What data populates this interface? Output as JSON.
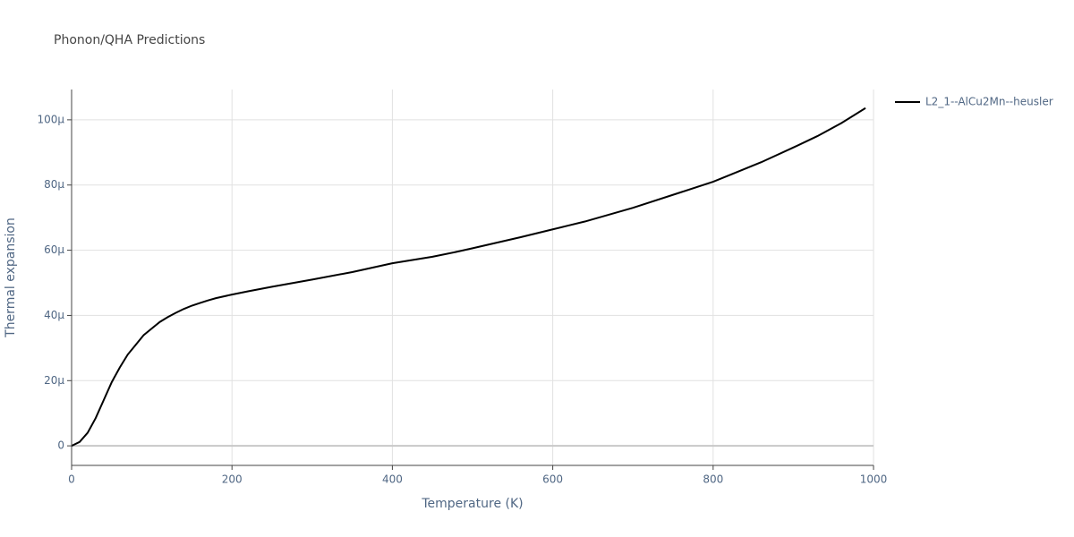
{
  "chart_data": {
    "type": "line",
    "title": "Phonon/QHA Predictions",
    "x_label": "Temperature (K)",
    "y_label": "Thermal expansion",
    "x": [
      0,
      10,
      20,
      30,
      40,
      50,
      60,
      70,
      80,
      90,
      100,
      110,
      120,
      130,
      140,
      150,
      160,
      170,
      180,
      200,
      220,
      250,
      300,
      350,
      400,
      450,
      480,
      500,
      560,
      600,
      640,
      700,
      760,
      800,
      820,
      860,
      900,
      930,
      960,
      990
    ],
    "series": [
      {
        "name": "L2_1--AlCu2Mn--heusler",
        "color": "#000000",
        "values": [
          0,
          1.2e-06,
          4e-06,
          8.5e-06,
          1.4e-05,
          1.95e-05,
          2.4e-05,
          2.8e-05,
          3.1e-05,
          3.4e-05,
          3.6e-05,
          3.8e-05,
          3.95e-05,
          4.08e-05,
          4.2e-05,
          4.3e-05,
          4.38e-05,
          4.46e-05,
          4.53e-05,
          4.64e-05,
          4.74e-05,
          4.88e-05,
          5.1e-05,
          5.33e-05,
          5.6e-05,
          5.8e-05,
          5.95e-05,
          6.06e-05,
          6.4e-05,
          6.64e-05,
          6.88e-05,
          7.3e-05,
          7.78e-05,
          8.1e-05,
          8.3e-05,
          8.7e-05,
          9.15e-05,
          9.5e-05,
          9.9e-05,
          0.0001036
        ]
      }
    ],
    "xlim": [
      0,
      1000
    ],
    "xticks": [
      0,
      200,
      400,
      600,
      800,
      1000
    ],
    "ylim": [
      -6e-06,
      0.0001093
    ],
    "yticks": [
      0,
      {
        "value": 2e-05,
        "label": "20μ"
      },
      {
        "value": 4e-05,
        "label": "40μ"
      },
      {
        "value": 6e-05,
        "label": "60μ"
      },
      {
        "value": 8e-05,
        "label": "80μ"
      },
      {
        "value": 0.0001,
        "label": "100μ"
      }
    ],
    "grid": true,
    "legend": "top-right"
  }
}
